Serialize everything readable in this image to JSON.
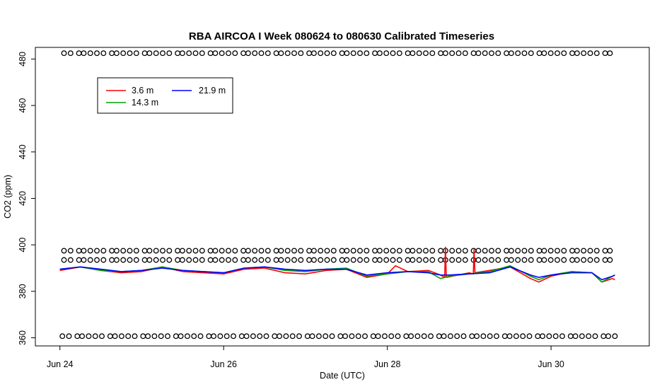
{
  "chart_data": {
    "type": "line",
    "title": "RBA AIRCOA I  Week 080624 to 080630  Calibrated Timeseries",
    "xlabel": "Date (UTC)",
    "ylabel": "CO2 (ppm)",
    "x_unit": "days since Jun 24 00:00 UTC",
    "xlim": [
      -0.3,
      7.2
    ],
    "ylim": [
      356.5,
      485
    ],
    "x_ticks": [
      {
        "value": 0,
        "label": "Jun 24"
      },
      {
        "value": 2,
        "label": "Jun 26"
      },
      {
        "value": 4,
        "label": "Jun 28"
      },
      {
        "value": 6,
        "label": "Jun 30"
      }
    ],
    "y_ticks": [
      360,
      380,
      400,
      420,
      440,
      460,
      480
    ],
    "grid": false,
    "legend": {
      "position": "top-left",
      "entries": [
        {
          "name": "3.6 m",
          "color": "#ff0000"
        },
        {
          "name": "14.3 m",
          "color": "#00a000"
        },
        {
          "name": "21.9 m",
          "color": "#0000ff"
        }
      ]
    },
    "series": [
      {
        "name": "3.6 m",
        "color": "#ff0000",
        "x": [
          0.0,
          0.25,
          0.5,
          0.75,
          1.0,
          1.25,
          1.5,
          1.75,
          2.0,
          2.25,
          2.5,
          2.75,
          3.0,
          3.25,
          3.5,
          3.75,
          4.0,
          4.1,
          4.25,
          4.5,
          4.65,
          4.7,
          4.71,
          4.72,
          5.0,
          5.05,
          5.06,
          5.07,
          5.25,
          5.5,
          5.75,
          5.85,
          6.0,
          6.25,
          6.5,
          6.62,
          6.75,
          6.78
        ],
        "y": [
          389.0,
          390.5,
          389.0,
          388.0,
          388.5,
          390.5,
          388.5,
          388.0,
          387.5,
          389.5,
          390.0,
          388.0,
          387.5,
          389.0,
          389.5,
          386.0,
          387.5,
          391.0,
          388.5,
          389.0,
          387.0,
          386.0,
          399.0,
          386.0,
          388.0,
          387.5,
          398.0,
          388.0,
          389.0,
          390.5,
          385.5,
          384.0,
          386.5,
          388.5,
          388.0,
          384.0,
          385.5,
          385.0
        ]
      },
      {
        "name": "14.3 m",
        "color": "#00a000",
        "x": [
          0.0,
          0.25,
          0.5,
          0.75,
          1.0,
          1.25,
          1.5,
          1.75,
          2.0,
          2.25,
          2.5,
          2.75,
          3.0,
          3.25,
          3.5,
          3.75,
          4.0,
          4.25,
          4.5,
          4.65,
          4.75,
          5.0,
          5.25,
          5.5,
          5.75,
          5.85,
          6.0,
          6.25,
          6.5,
          6.62,
          6.75,
          6.78
        ],
        "y": [
          389.5,
          390.5,
          389.0,
          388.5,
          389.0,
          390.5,
          389.0,
          388.5,
          388.0,
          390.0,
          390.5,
          389.0,
          388.5,
          389.5,
          390.0,
          386.5,
          387.5,
          388.5,
          388.5,
          385.5,
          386.5,
          387.5,
          388.5,
          391.0,
          386.5,
          385.0,
          387.0,
          388.5,
          388.0,
          384.0,
          386.5,
          387.0
        ]
      },
      {
        "name": "21.9 m",
        "color": "#0000ff",
        "x": [
          0.0,
          0.25,
          0.5,
          0.75,
          1.0,
          1.25,
          1.5,
          1.75,
          2.0,
          2.25,
          2.5,
          2.75,
          3.0,
          3.25,
          3.5,
          3.75,
          4.0,
          4.25,
          4.5,
          4.65,
          4.75,
          5.0,
          5.25,
          5.5,
          5.75,
          5.85,
          6.0,
          6.25,
          6.5,
          6.62,
          6.75,
          6.78
        ],
        "y": [
          389.5,
          390.5,
          389.5,
          388.5,
          389.0,
          390.0,
          389.0,
          388.5,
          388.0,
          390.0,
          390.5,
          389.5,
          389.0,
          389.5,
          389.5,
          387.0,
          388.0,
          388.5,
          388.0,
          387.0,
          387.0,
          387.5,
          388.0,
          390.5,
          387.0,
          386.0,
          387.0,
          388.0,
          388.0,
          385.0,
          386.5,
          387.0
        ]
      }
    ],
    "flag_marker_rows": [
      {
        "y": 482.5,
        "x_start": 0.05,
        "x_end": 6.75
      },
      {
        "y": 397.5,
        "x_start": 0.05,
        "x_end": 6.72
      },
      {
        "y": 393.5,
        "x_start": 0.05,
        "x_end": 6.75
      },
      {
        "y": 360.7,
        "x_start": 0.03,
        "x_end": 6.78
      }
    ]
  }
}
